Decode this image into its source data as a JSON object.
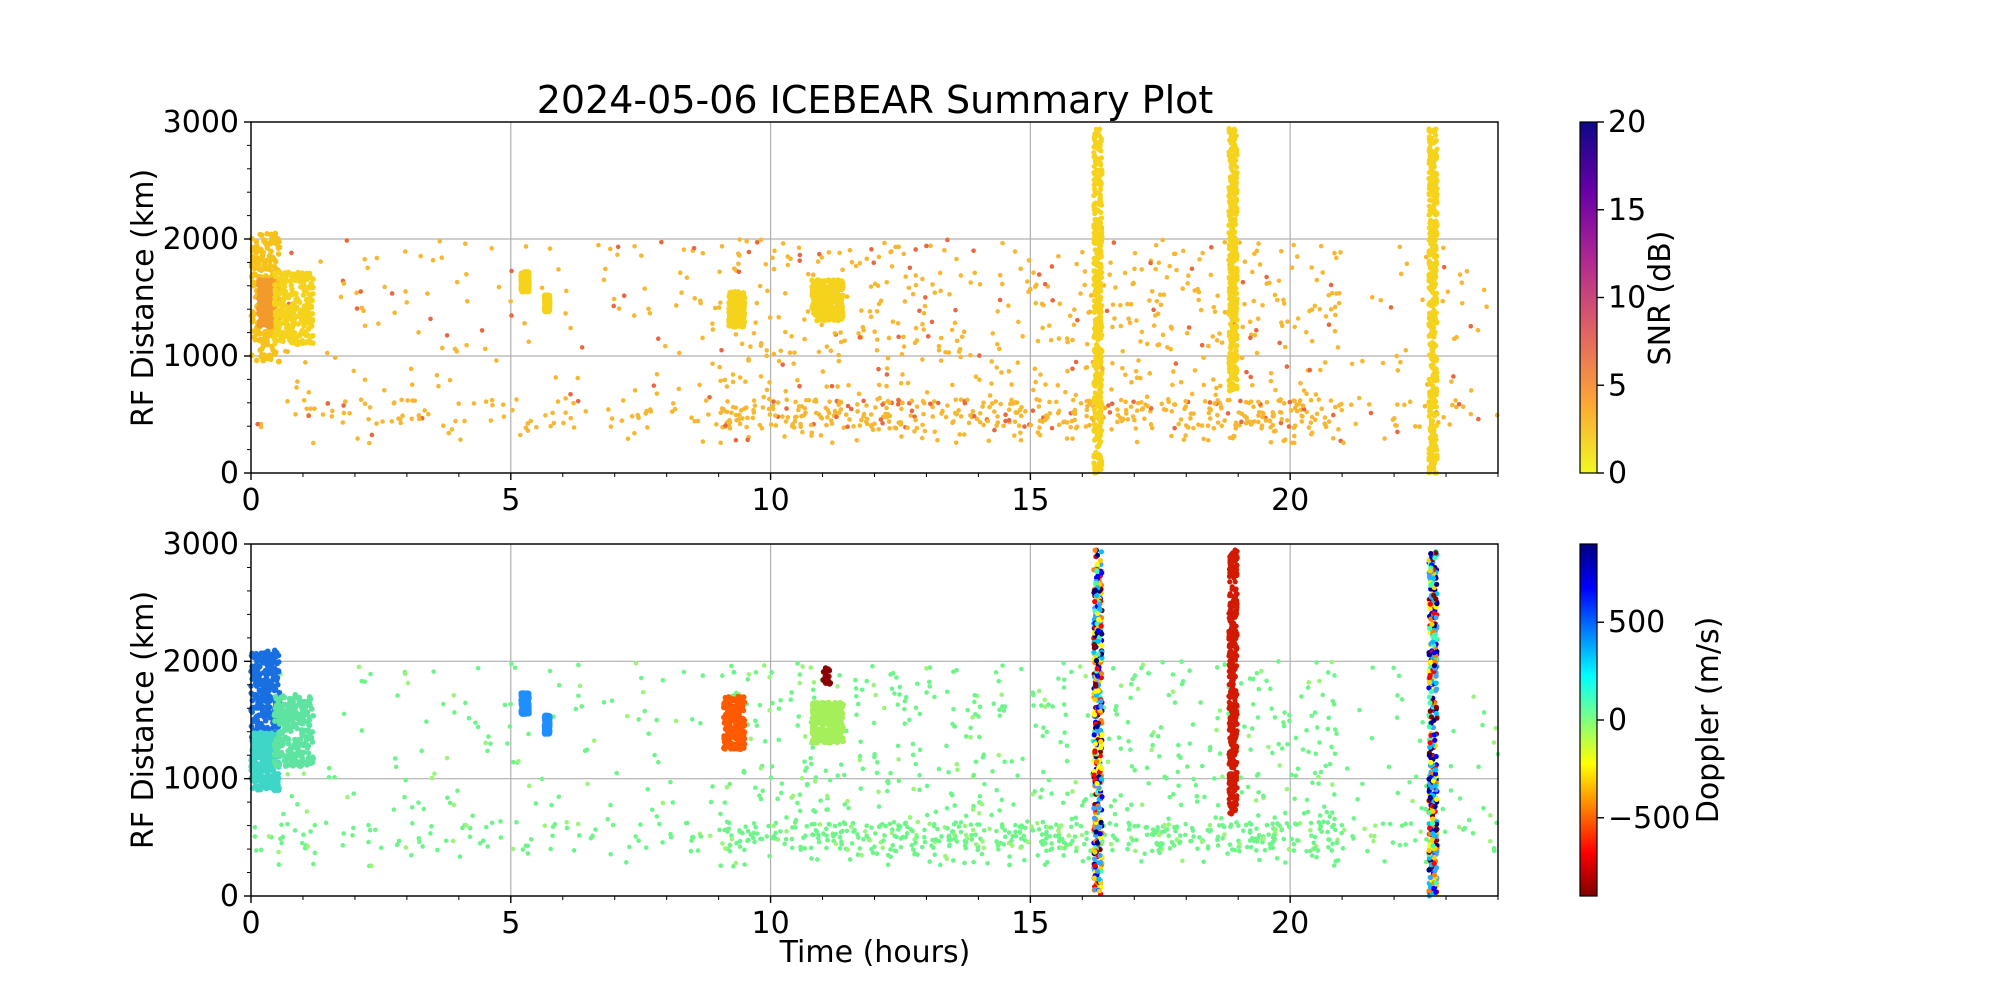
{
  "title": "2024-05-06 ICEBEAR Summary Plot",
  "xlabel": "Time (hours)",
  "chart_data": [
    {
      "type": "scatter",
      "panel": "top",
      "ylabel": "RF Distance (km)",
      "xlim": [
        0,
        24
      ],
      "ylim": [
        0,
        3000
      ],
      "xticks": [
        0,
        5,
        10,
        15,
        20
      ],
      "yticks": [
        0,
        1000,
        2000,
        3000
      ],
      "grid": true,
      "colorbar": {
        "label": "SNR (dB)",
        "range": [
          0,
          20
        ],
        "ticks": [
          0,
          5,
          10,
          15,
          20
        ],
        "colormap": "plasma_r",
        "stops": [
          "#f0f921",
          "#fca636",
          "#e16462",
          "#b12a90",
          "#6a00a8",
          "#0d0887"
        ]
      },
      "clusters": [
        {
          "x": [
            0.0,
            0.55
          ],
          "y": [
            950,
            2050
          ],
          "color": "#f5c21b",
          "density": "dense"
        },
        {
          "x": [
            0.15,
            0.45
          ],
          "y": [
            1250,
            1650
          ],
          "color": "#f39a2c",
          "density": "dense"
        },
        {
          "x": [
            0.45,
            1.2
          ],
          "y": [
            1100,
            1720
          ],
          "color": "#f5d31c",
          "density": "dense"
        },
        {
          "x": [
            5.2,
            5.35
          ],
          "y": [
            1550,
            1720
          ],
          "color": "#f5d31c",
          "density": "dense"
        },
        {
          "x": [
            5.65,
            5.75
          ],
          "y": [
            1380,
            1520
          ],
          "color": "#f5d31c",
          "density": "dense"
        },
        {
          "x": [
            9.2,
            9.5
          ],
          "y": [
            1250,
            1550
          ],
          "color": "#f5d31c",
          "density": "dense"
        },
        {
          "x": [
            10.8,
            11.4
          ],
          "y": [
            1300,
            1650
          ],
          "color": "#f5d31c",
          "density": "dense"
        }
      ],
      "vertical_streaks": [
        {
          "x": 16.3,
          "y": [
            0,
            2950
          ],
          "color": "#f5d31c"
        },
        {
          "x": 18.9,
          "y": [
            700,
            2950
          ],
          "color": "#f5d31c"
        },
        {
          "x": 22.75,
          "y": [
            0,
            2950
          ],
          "color": "#f5d31c"
        }
      ],
      "scatter_background": {
        "x": [
          0,
          24
        ],
        "y": [
          250,
          2000
        ],
        "color": "#f7b731",
        "note_color": "#e9683f"
      }
    },
    {
      "type": "scatter",
      "panel": "bottom",
      "ylabel": "RF Distance (km)",
      "xlim": [
        0,
        24
      ],
      "ylim": [
        0,
        3000
      ],
      "xticks": [
        0,
        5,
        10,
        15,
        20
      ],
      "yticks": [
        0,
        1000,
        2000,
        3000
      ],
      "grid": true,
      "colorbar": {
        "label": "Doppler (m/s)",
        "range": [
          -900,
          900
        ],
        "ticks": [
          -500,
          0,
          500
        ],
        "tick_labels": [
          "−500",
          "0",
          "500"
        ],
        "colormap": "jet_r",
        "stops": [
          "#800000",
          "#ff0000",
          "#ff8000",
          "#ffff00",
          "#80ff80",
          "#00ffff",
          "#0080ff",
          "#0000ff",
          "#000080"
        ]
      },
      "clusters": [
        {
          "x": [
            0.0,
            0.55
          ],
          "y": [
            1300,
            2100
          ],
          "color": "#1a6fe0",
          "density": "dense"
        },
        {
          "x": [
            0.0,
            0.55
          ],
          "y": [
            900,
            1400
          ],
          "color": "#3fd6c8",
          "density": "dense"
        },
        {
          "x": [
            0.45,
            1.2
          ],
          "y": [
            1100,
            1720
          ],
          "color": "#5fe3a0",
          "density": "dense"
        },
        {
          "x": [
            5.2,
            5.35
          ],
          "y": [
            1550,
            1730
          ],
          "color": "#1f8fff",
          "density": "dense"
        },
        {
          "x": [
            5.65,
            5.75
          ],
          "y": [
            1380,
            1540
          ],
          "color": "#1f8fff",
          "density": "dense"
        },
        {
          "x": [
            9.1,
            9.5
          ],
          "y": [
            1250,
            1700
          ],
          "color": "#ff5a00",
          "density": "dense"
        },
        {
          "x": [
            10.8,
            11.4
          ],
          "y": [
            1300,
            1650
          ],
          "color": "#a5f05a",
          "density": "dense"
        },
        {
          "x": [
            11.0,
            11.15
          ],
          "y": [
            1800,
            1950
          ],
          "color": "#8b0000",
          "density": "sparse"
        }
      ],
      "vertical_streaks": [
        {
          "x": 16.3,
          "y": [
            0,
            2950
          ],
          "color": "mixed"
        },
        {
          "x": 18.9,
          "y": [
            700,
            2950
          ],
          "color": "#d11a00"
        },
        {
          "x": 22.75,
          "y": [
            0,
            2950
          ],
          "color": "mixed"
        }
      ],
      "scatter_background": {
        "x": [
          0,
          24
        ],
        "y": [
          250,
          2000
        ],
        "color": "#6df58a"
      }
    }
  ]
}
